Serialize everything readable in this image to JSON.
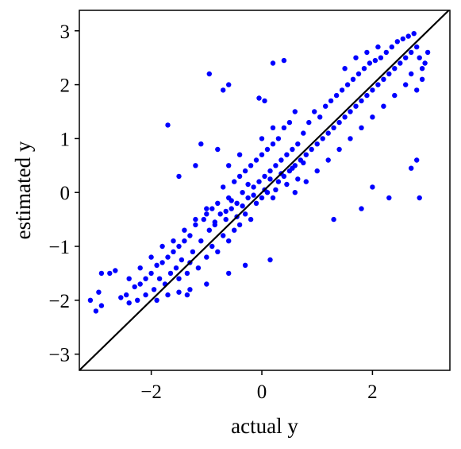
{
  "chart_data": {
    "type": "scatter",
    "title": "",
    "xlabel": "actual y",
    "ylabel": "estimated y",
    "xlim": [
      -3.3,
      3.4
    ],
    "ylim": [
      -3.3,
      3.38
    ],
    "xticks": [
      -2,
      0,
      2
    ],
    "yticks": [
      -3,
      -2,
      -1,
      0,
      1,
      2,
      3
    ],
    "xtick_labels": [
      "−2",
      "0",
      "2"
    ],
    "ytick_labels": [
      "−3",
      "−2",
      "−1",
      "0",
      "1",
      "2",
      "3"
    ],
    "grid": false,
    "legend": "none",
    "point_color": "#0000ff",
    "reference_line": {
      "type": "identity",
      "color": "#000000"
    },
    "series": [
      {
        "values": [
          [
            -3.1,
            -2.0
          ],
          [
            -3.0,
            -2.2
          ],
          [
            -2.9,
            -2.1
          ],
          [
            -2.95,
            -1.85
          ],
          [
            -2.9,
            -1.5
          ],
          [
            -2.75,
            -1.5
          ],
          [
            -2.65,
            -1.45
          ],
          [
            -2.55,
            -1.95
          ],
          [
            -2.45,
            -1.9
          ],
          [
            -2.4,
            -2.05
          ],
          [
            -2.3,
            -1.75
          ],
          [
            -2.25,
            -2.0
          ],
          [
            -2.2,
            -1.7
          ],
          [
            -2.1,
            -1.6
          ],
          [
            -2.1,
            -1.9
          ],
          [
            -2.0,
            -1.5
          ],
          [
            -1.95,
            -1.8
          ],
          [
            -1.9,
            -1.35
          ],
          [
            -1.85,
            -1.6
          ],
          [
            -1.8,
            -1.3
          ],
          [
            -1.75,
            -1.7
          ],
          [
            -1.7,
            -1.2
          ],
          [
            -1.65,
            -1.5
          ],
          [
            -1.6,
            -1.1
          ],
          [
            -1.55,
            -1.4
          ],
          [
            -1.5,
            -1.0
          ],
          [
            -1.5,
            -1.6
          ],
          [
            -1.45,
            -1.25
          ],
          [
            -1.4,
            -0.9
          ],
          [
            -1.35,
            -1.5
          ],
          [
            -1.3,
            -0.8
          ],
          [
            -1.3,
            -1.3
          ],
          [
            -1.25,
            -1.1
          ],
          [
            -1.2,
            -0.6
          ],
          [
            -1.15,
            -1.4
          ],
          [
            -1.1,
            -0.9
          ],
          [
            -1.05,
            -0.5
          ],
          [
            -1.0,
            -1.2
          ],
          [
            -0.95,
            -0.7
          ],
          [
            -0.9,
            -0.3
          ],
          [
            -0.9,
            -1.0
          ],
          [
            -0.85,
            -0.6
          ],
          [
            -0.8,
            -0.2
          ],
          [
            -0.8,
            -1.1
          ],
          [
            -0.75,
            -0.4
          ],
          [
            -0.7,
            -0.8
          ],
          [
            -0.7,
            0.1
          ],
          [
            -0.65,
            -0.5
          ],
          [
            -0.6,
            -0.1
          ],
          [
            -0.6,
            -0.9
          ],
          [
            -0.55,
            -0.3
          ],
          [
            -0.5,
            0.2
          ],
          [
            -0.5,
            -0.7
          ],
          [
            -0.45,
            -0.2
          ],
          [
            -0.4,
            0.3
          ],
          [
            -0.4,
            -0.6
          ],
          [
            -0.35,
            0.0
          ],
          [
            -0.3,
            -0.4
          ],
          [
            -0.3,
            0.4
          ],
          [
            -0.25,
            -0.1
          ],
          [
            -0.2,
            0.5
          ],
          [
            -0.2,
            -0.5
          ],
          [
            -0.15,
            0.1
          ],
          [
            -0.1,
            -0.2
          ],
          [
            -0.1,
            0.6
          ],
          [
            -0.05,
            0.2
          ],
          [
            0.0,
            -0.1
          ],
          [
            0.0,
            0.7
          ],
          [
            0.05,
            0.3
          ],
          [
            0.1,
            0.0
          ],
          [
            0.1,
            0.8
          ],
          [
            0.15,
            0.4
          ],
          [
            0.2,
            -0.1
          ],
          [
            0.2,
            0.9
          ],
          [
            0.25,
            0.5
          ],
          [
            0.3,
            0.2
          ],
          [
            0.3,
            1.0
          ],
          [
            0.35,
            0.6
          ],
          [
            0.4,
            0.3
          ],
          [
            0.4,
            1.2
          ],
          [
            0.45,
            0.7
          ],
          [
            0.5,
            0.4
          ],
          [
            0.5,
            1.3
          ],
          [
            0.55,
            0.8
          ],
          [
            0.6,
            0.5
          ],
          [
            0.6,
            1.5
          ],
          [
            0.65,
            0.9
          ],
          [
            0.7,
            0.6
          ],
          [
            0.75,
            1.1
          ],
          [
            0.8,
            0.7
          ],
          [
            0.85,
            1.3
          ],
          [
            0.9,
            0.8
          ],
          [
            0.95,
            1.5
          ],
          [
            1.0,
            0.9
          ],
          [
            1.05,
            1.4
          ],
          [
            1.1,
            1.0
          ],
          [
            1.15,
            1.6
          ],
          [
            1.2,
            1.1
          ],
          [
            1.25,
            1.7
          ],
          [
            1.3,
            1.2
          ],
          [
            1.35,
            1.8
          ],
          [
            1.4,
            1.3
          ],
          [
            1.45,
            1.9
          ],
          [
            1.5,
            1.4
          ],
          [
            1.55,
            2.0
          ],
          [
            1.6,
            1.5
          ],
          [
            1.65,
            2.1
          ],
          [
            1.7,
            1.6
          ],
          [
            1.75,
            2.2
          ],
          [
            1.8,
            1.7
          ],
          [
            1.85,
            2.3
          ],
          [
            1.9,
            1.8
          ],
          [
            1.95,
            2.4
          ],
          [
            2.0,
            1.9
          ],
          [
            2.05,
            2.45
          ],
          [
            2.1,
            2.0
          ],
          [
            2.15,
            2.5
          ],
          [
            2.2,
            2.1
          ],
          [
            2.25,
            2.6
          ],
          [
            2.3,
            2.2
          ],
          [
            2.35,
            2.7
          ],
          [
            2.4,
            2.3
          ],
          [
            2.45,
            2.8
          ],
          [
            2.5,
            2.4
          ],
          [
            2.55,
            2.85
          ],
          [
            2.6,
            2.5
          ],
          [
            2.65,
            2.9
          ],
          [
            2.7,
            2.6
          ],
          [
            2.75,
            2.95
          ],
          [
            2.8,
            2.7
          ],
          [
            2.85,
            2.5
          ],
          [
            2.9,
            2.3
          ],
          [
            2.95,
            2.4
          ],
          [
            3.0,
            2.6
          ],
          [
            2.9,
            2.1
          ],
          [
            2.8,
            1.9
          ],
          [
            -0.95,
            2.2
          ],
          [
            -0.7,
            1.9
          ],
          [
            -0.6,
            2.0
          ],
          [
            0.2,
            2.4
          ],
          [
            0.4,
            2.45
          ],
          [
            -1.7,
            1.25
          ],
          [
            -0.05,
            1.75
          ],
          [
            0.05,
            1.7
          ],
          [
            2.3,
            -0.1
          ],
          [
            2.7,
            0.45
          ],
          [
            2.8,
            0.6
          ],
          [
            2.85,
            -0.1
          ],
          [
            0.15,
            -1.25
          ],
          [
            1.3,
            -0.5
          ],
          [
            1.8,
            -0.3
          ],
          [
            2.0,
            0.1
          ],
          [
            -1.3,
            -1.8
          ],
          [
            -1.0,
            -1.7
          ],
          [
            -0.6,
            -1.5
          ],
          [
            -0.3,
            -1.35
          ],
          [
            -1.5,
            0.3
          ],
          [
            -1.2,
            0.5
          ],
          [
            -0.8,
            0.8
          ],
          [
            -1.1,
            0.9
          ],
          [
            -1.0,
            -0.4
          ],
          [
            -0.85,
            -0.55
          ],
          [
            -0.65,
            -0.35
          ],
          [
            -0.45,
            -0.45
          ],
          [
            -0.55,
            -0.15
          ],
          [
            -0.35,
            -0.25
          ],
          [
            -0.25,
            0.15
          ],
          [
            -0.15,
            -0.05
          ],
          [
            0.05,
            0.05
          ],
          [
            0.15,
            0.25
          ],
          [
            0.25,
            0.05
          ],
          [
            0.35,
            0.35
          ],
          [
            0.45,
            0.15
          ],
          [
            0.55,
            0.45
          ],
          [
            0.65,
            0.25
          ],
          [
            0.75,
            0.55
          ],
          [
            -1.6,
            -0.9
          ],
          [
            -1.4,
            -0.7
          ],
          [
            -1.2,
            -0.5
          ],
          [
            -1.0,
            -0.3
          ],
          [
            -0.6,
            0.5
          ],
          [
            -0.4,
            0.7
          ],
          [
            0.0,
            1.0
          ],
          [
            0.2,
            1.2
          ],
          [
            0.6,
            0.0
          ],
          [
            0.8,
            0.2
          ],
          [
            1.0,
            0.4
          ],
          [
            1.2,
            0.6
          ],
          [
            1.4,
            0.8
          ],
          [
            1.6,
            1.0
          ],
          [
            1.8,
            1.2
          ],
          [
            2.0,
            1.4
          ],
          [
            2.2,
            1.6
          ],
          [
            2.4,
            1.8
          ],
          [
            2.6,
            2.0
          ],
          [
            2.7,
            2.2
          ],
          [
            1.5,
            2.3
          ],
          [
            1.7,
            2.5
          ],
          [
            1.9,
            2.6
          ],
          [
            2.1,
            2.7
          ],
          [
            -2.0,
            -1.2
          ],
          [
            -1.8,
            -1.0
          ],
          [
            -2.2,
            -1.4
          ],
          [
            -2.4,
            -1.6
          ],
          [
            -1.9,
            -2.0
          ],
          [
            -1.7,
            -1.9
          ],
          [
            -1.5,
            -1.85
          ],
          [
            -1.35,
            -1.9
          ]
        ]
      }
    ]
  }
}
